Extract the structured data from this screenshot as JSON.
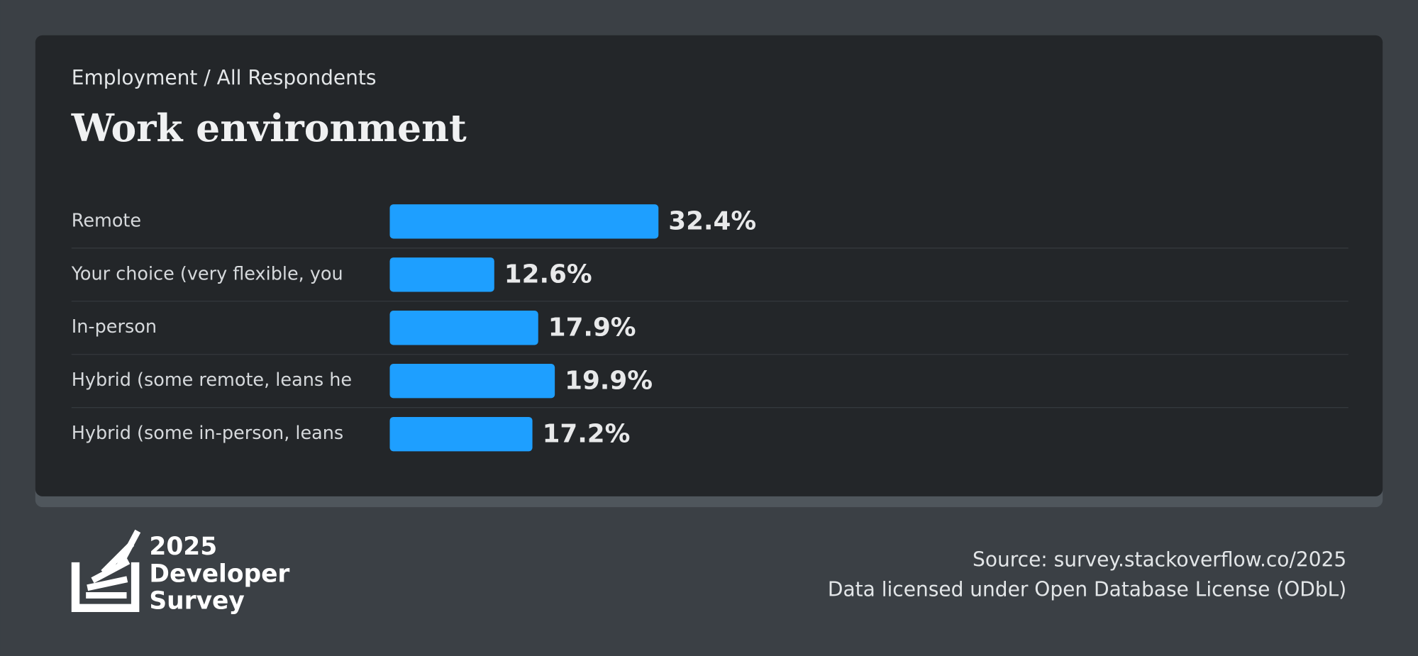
{
  "chart_data": {
    "type": "bar",
    "orientation": "horizontal",
    "subtitle": "Employment / All Respondents",
    "title": "Work environment",
    "categories": [
      "Remote",
      "Your choice (very flexible, you",
      "In-person",
      "Hybrid (some remote, leans he",
      "Hybrid (some in-person, leans"
    ],
    "values": [
      32.4,
      12.6,
      17.9,
      19.9,
      17.2
    ],
    "value_labels": [
      "32.4%",
      "12.6%",
      "17.9%",
      "19.9%",
      "17.2%"
    ],
    "color": "#1e9fff"
  },
  "footer": {
    "logo": {
      "year": "2025",
      "line1": "Developer",
      "line2": "Survey"
    },
    "source": "Source: survey.stackoverflow.co/2025",
    "license": "Data licensed under Open Database License (ODbL)"
  }
}
